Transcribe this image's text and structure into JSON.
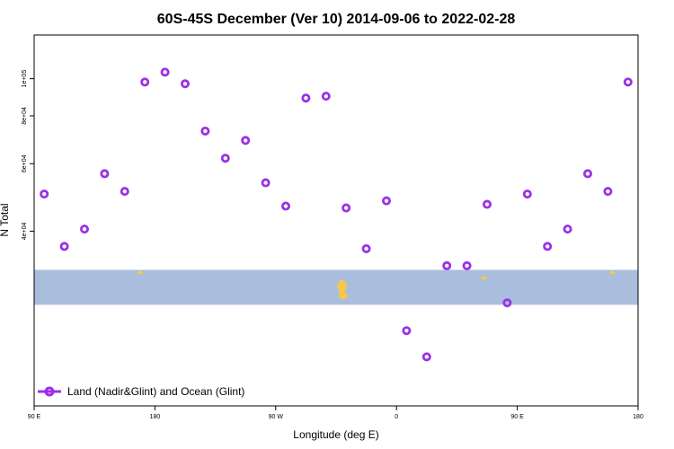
{
  "chart_data": {
    "type": "scatter",
    "title": "60S-45S December (Ver 10)   2014-09-06 to 2022-02-28",
    "xlabel": "Longitude (deg E)",
    "ylabel": "N Total",
    "xlim": [
      90,
      540
    ],
    "x_axis_note": "x continues eastward past 180 and wraps: 90 E, 180, 90 W, 0, 90 E, 180",
    "x_ticks": [
      {
        "value": 90,
        "label": "90 E"
      },
      {
        "value": 180,
        "label": "180"
      },
      {
        "value": 270,
        "label": "90 W"
      },
      {
        "value": 360,
        "label": "0"
      },
      {
        "value": 450,
        "label": "90 E"
      },
      {
        "value": 540,
        "label": "180"
      }
    ],
    "y_scale": "log",
    "ylim": [
      14000,
      130000
    ],
    "y_ticks": [
      {
        "value": 40000,
        "label": "4e+04"
      },
      {
        "value": 60000,
        "label": "6e+04"
      },
      {
        "value": 80000,
        "label": "8e+04"
      },
      {
        "value": 100000,
        "label": "1e+05"
      }
    ],
    "grid": false,
    "legend_position": "bottom-left",
    "series": [
      {
        "name": "Land (Nadir&Glint) and Ocean (Glint)",
        "color": "#9B30E8",
        "marker": "open-circle",
        "x": [
          97.5,
          112.5,
          127.5,
          142.5,
          157.5,
          172.5,
          187.5,
          202.5,
          217.5,
          232.5,
          247.5,
          262.5,
          277.5,
          292.5,
          307.5,
          322.5,
          337.5,
          352.5,
          367.5,
          382.5,
          397.5,
          412.5,
          427.5,
          442.5,
          457.5,
          472.5,
          487.5,
          502.5,
          517.5,
          532.5
        ],
        "y": [
          50000,
          36500,
          40500,
          56500,
          50800,
          98000,
          104000,
          97000,
          73000,
          62000,
          69000,
          53500,
          46500,
          89000,
          90000,
          46000,
          36000,
          48000,
          22000,
          18800,
          32500,
          32500,
          47000,
          26000,
          50000,
          36500,
          40500,
          56500,
          50800,
          98000
        ]
      }
    ],
    "bands": [
      {
        "label": "",
        "y_range": [
          25700,
          31700
        ],
        "color": "#A8BEDC"
      }
    ],
    "land_markers": [
      {
        "x": 169,
        "y": 31200
      },
      {
        "x": 521,
        "y": 31200
      },
      {
        "x": 425,
        "y": 30200
      },
      {
        "x": 319,
        "y": 28900
      }
    ],
    "land_color": "#F5C84C",
    "axis_color": "#000000",
    "background": "#ffffff"
  }
}
